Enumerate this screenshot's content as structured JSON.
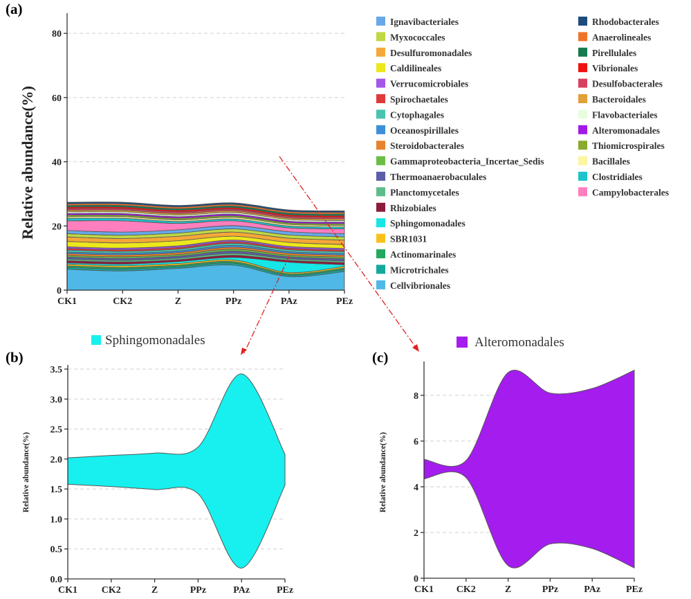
{
  "figure": {
    "panel_a_label": "(a)",
    "panel_b_label": "(b)",
    "panel_c_label": "(c)"
  },
  "chart_data": [
    {
      "panel": "(a)",
      "type": "area",
      "stacked": true,
      "smooth": true,
      "title": "",
      "xlabel": "",
      "ylabel": "Relative abundance(%)",
      "categories": [
        "CK1",
        "CK2",
        "Z",
        "PPz",
        "PAz",
        "PEz"
      ],
      "ylim": [
        0,
        85
      ],
      "yticks": [
        0,
        20,
        40,
        60,
        80
      ],
      "grid": "horizontal dashed",
      "legend": "right, two columns",
      "series": [
        {
          "name": "Cellvibrionales",
          "color": "#4FB8E6",
          "values": [
            6.5,
            6.0,
            6.8,
            7.8,
            4.2,
            5.8
          ]
        },
        {
          "name": "Microtrichales",
          "color": "#13A89E",
          "values": [
            0.6,
            0.6,
            0.5,
            0.6,
            0.5,
            0.6
          ]
        },
        {
          "name": "Actinomarinales",
          "color": "#22A95E",
          "values": [
            0.5,
            0.5,
            0.5,
            0.5,
            0.4,
            0.5
          ]
        },
        {
          "name": "SBR1031",
          "color": "#F7C11A",
          "values": [
            0.5,
            0.5,
            0.5,
            0.5,
            0.4,
            0.5
          ]
        },
        {
          "name": "Sphingomonadales",
          "color": "#17E6E6",
          "values": [
            0.4,
            0.5,
            0.6,
            0.8,
            3.2,
            0.5
          ]
        },
        {
          "name": "Rhizobiales",
          "color": "#8C1C3C",
          "values": [
            0.7,
            0.7,
            0.6,
            0.7,
            0.6,
            0.7
          ]
        },
        {
          "name": "Planctomycetales",
          "color": "#5EBC8A",
          "values": [
            0.5,
            0.5,
            0.5,
            0.6,
            0.5,
            0.5
          ]
        },
        {
          "name": "Thermoanaerobaculales",
          "color": "#5A5EA8",
          "values": [
            0.6,
            0.6,
            0.6,
            0.7,
            0.6,
            0.7
          ]
        },
        {
          "name": "Gammaproteobacteria_Incertae_Sedis",
          "color": "#6BBE45",
          "values": [
            0.5,
            0.5,
            0.5,
            0.6,
            0.5,
            0.5
          ]
        },
        {
          "name": "Steroidobacterales",
          "color": "#E8822E",
          "values": [
            0.6,
            0.6,
            0.6,
            0.6,
            0.6,
            0.6
          ]
        },
        {
          "name": "Oceanospirillales",
          "color": "#3D8FD9",
          "values": [
            0.5,
            0.5,
            0.5,
            0.6,
            0.5,
            0.5
          ]
        },
        {
          "name": "Cytophagales",
          "color": "#48C4B0",
          "values": [
            0.6,
            0.6,
            0.6,
            0.6,
            0.6,
            0.6
          ]
        },
        {
          "name": "Spirochaetales",
          "color": "#E03A3A",
          "values": [
            0.5,
            0.5,
            0.5,
            0.5,
            0.5,
            0.5
          ]
        },
        {
          "name": "Verrucomicrobiales",
          "color": "#A356E8",
          "values": [
            0.5,
            0.5,
            0.5,
            0.5,
            0.5,
            0.5
          ]
        },
        {
          "name": "Caldilineales",
          "color": "#EDE81C",
          "values": [
            1.7,
            1.6,
            1.6,
            1.2,
            1.3,
            1.2
          ]
        },
        {
          "name": "Desulfuromonadales",
          "color": "#F4A838",
          "values": [
            1.4,
            1.4,
            1.4,
            1.3,
            1.3,
            1.4
          ]
        },
        {
          "name": "Myxococcales",
          "color": "#BFD942",
          "values": [
            1.0,
            1.0,
            1.0,
            1.0,
            1.0,
            1.0
          ]
        },
        {
          "name": "Ignavibacteriales",
          "color": "#68A8E8",
          "values": [
            1.0,
            1.0,
            1.0,
            1.0,
            1.0,
            1.0
          ]
        },
        {
          "name": "Campylobacterales",
          "color": "#FF7EBE",
          "values": [
            3.0,
            3.5,
            2.0,
            1.5,
            1.2,
            1.5
          ]
        },
        {
          "name": "Clostridiales",
          "color": "#1FC3CC",
          "values": [
            0.8,
            0.8,
            0.6,
            0.6,
            0.6,
            0.6
          ]
        },
        {
          "name": "Bacillales",
          "color": "#FDF5A0",
          "values": [
            0.5,
            0.5,
            0.5,
            0.5,
            0.5,
            0.5
          ]
        },
        {
          "name": "Thiomicrospirales",
          "color": "#8AAB2E",
          "values": [
            0.5,
            0.5,
            0.5,
            0.5,
            0.5,
            0.5
          ]
        },
        {
          "name": "Alteromonadales",
          "color": "#A11AE6",
          "values": [
            0.5,
            0.5,
            0.5,
            0.5,
            0.5,
            0.5
          ]
        },
        {
          "name": "Flavobacteriales",
          "color": "#E8FDE0",
          "values": [
            0.5,
            0.5,
            0.5,
            0.5,
            0.5,
            0.5
          ]
        },
        {
          "name": "Bacteroidales",
          "color": "#E2A038",
          "values": [
            0.5,
            0.5,
            0.5,
            0.5,
            0.5,
            0.5
          ]
        },
        {
          "name": "Desulfobacterales",
          "color": "#D8405F",
          "values": [
            0.5,
            0.5,
            0.5,
            0.5,
            0.5,
            0.5
          ]
        },
        {
          "name": "Vibrionales",
          "color": "#F01010",
          "values": [
            0.5,
            0.5,
            0.5,
            0.5,
            0.5,
            0.5
          ]
        },
        {
          "name": "Pirellulales",
          "color": "#157A4E",
          "values": [
            0.5,
            0.5,
            0.5,
            0.5,
            0.5,
            0.5
          ]
        },
        {
          "name": "Anaerolineales",
          "color": "#F0732A",
          "values": [
            0.5,
            0.5,
            0.5,
            0.5,
            0.5,
            0.5
          ]
        },
        {
          "name": "Rhodobacterales",
          "color": "#1E4C7C",
          "values": [
            0.5,
            0.5,
            0.5,
            0.5,
            0.5,
            0.5
          ]
        }
      ]
    },
    {
      "panel": "(b)",
      "type": "area",
      "shape": "symmetric band (streamgraph)",
      "title": "Sphingomonadales",
      "color": "#17F0EE",
      "xlabel": "",
      "ylabel": "Relative abundance(%)",
      "categories": [
        "CK1",
        "CK2",
        "Z",
        "PPz",
        "PAz",
        "PEz"
      ],
      "ylim": [
        0,
        3.5
      ],
      "yticks": [
        0.0,
        0.5,
        1.0,
        1.5,
        2.0,
        2.5,
        3.0,
        3.5
      ],
      "grid": "horizontal dashed",
      "upper": [
        2.02,
        2.06,
        2.1,
        2.2,
        3.42,
        2.08
      ],
      "lower": [
        1.58,
        1.54,
        1.49,
        1.42,
        0.18,
        1.56
      ]
    },
    {
      "panel": "(c)",
      "type": "area",
      "shape": "symmetric band (streamgraph)",
      "title": "Alteromonadales",
      "color": "#A41DEE",
      "xlabel": "",
      "ylabel": "Relative abundance(%)",
      "categories": [
        "CK1",
        "CK2",
        "Z",
        "PPz",
        "PAz",
        "PEz"
      ],
      "ylim": [
        0,
        9.3
      ],
      "yticks": [
        0,
        2,
        4,
        6,
        8
      ],
      "grid": "horizontal dashed",
      "upper": [
        5.2,
        5.15,
        9.0,
        8.1,
        8.3,
        9.1
      ],
      "lower": [
        4.35,
        4.4,
        0.55,
        1.5,
        1.3,
        0.45
      ]
    }
  ]
}
